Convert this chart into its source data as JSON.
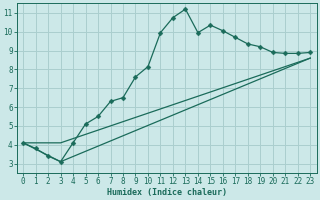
{
  "xlabel": "Humidex (Indice chaleur)",
  "bg_color": "#cce8e8",
  "grid_color": "#aacece",
  "line_color": "#1a6b5a",
  "xlim": [
    -0.5,
    23.5
  ],
  "ylim": [
    2.5,
    11.5
  ],
  "xticks": [
    0,
    1,
    2,
    3,
    4,
    5,
    6,
    7,
    8,
    9,
    10,
    11,
    12,
    13,
    14,
    15,
    16,
    17,
    18,
    19,
    20,
    21,
    22,
    23
  ],
  "yticks": [
    3,
    4,
    5,
    6,
    7,
    8,
    9,
    10,
    11
  ],
  "series1_x": [
    0,
    1,
    2,
    3,
    4,
    5,
    6,
    7,
    8,
    9,
    10,
    11,
    12,
    13,
    14,
    15,
    16,
    17,
    18,
    19,
    20,
    21,
    22,
    23
  ],
  "series1_y": [
    4.1,
    3.8,
    3.4,
    3.1,
    4.1,
    5.1,
    5.5,
    6.3,
    6.5,
    7.6,
    8.15,
    9.95,
    10.75,
    11.2,
    9.95,
    10.35,
    10.05,
    9.7,
    9.35,
    9.2,
    8.9,
    8.85,
    8.85,
    8.9
  ],
  "series2_x": [
    0,
    3,
    23
  ],
  "series2_y": [
    4.1,
    3.1,
    8.6
  ],
  "series3_x": [
    0,
    3,
    23
  ],
  "series3_y": [
    4.1,
    4.1,
    8.6
  ],
  "xlabel_fontsize": 6.0,
  "tick_fontsize": 5.5,
  "marker_size": 2.5,
  "line_width": 0.9
}
